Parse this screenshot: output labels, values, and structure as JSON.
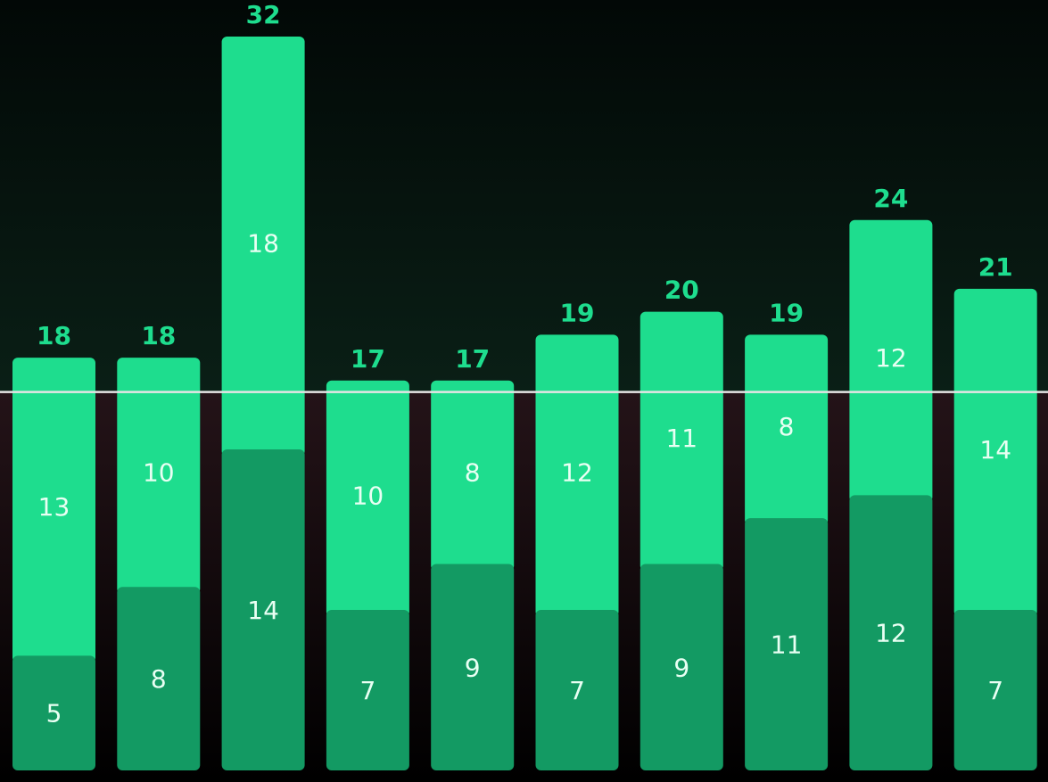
{
  "chart_data": {
    "type": "stacked-bar",
    "series": [
      {
        "name": null,
        "color": "#139a63",
        "values": [
          5,
          8,
          14,
          7,
          9,
          7,
          9,
          11,
          12,
          7
        ]
      },
      {
        "name": null,
        "color": "#1edd8e",
        "values": [
          13,
          10,
          18,
          10,
          8,
          12,
          11,
          8,
          12,
          14
        ]
      }
    ],
    "totals": [
      18,
      18,
      32,
      17,
      17,
      19,
      20,
      19,
      24,
      21
    ],
    "reference_line": 16.5,
    "ylim": [
      0,
      32
    ]
  }
}
